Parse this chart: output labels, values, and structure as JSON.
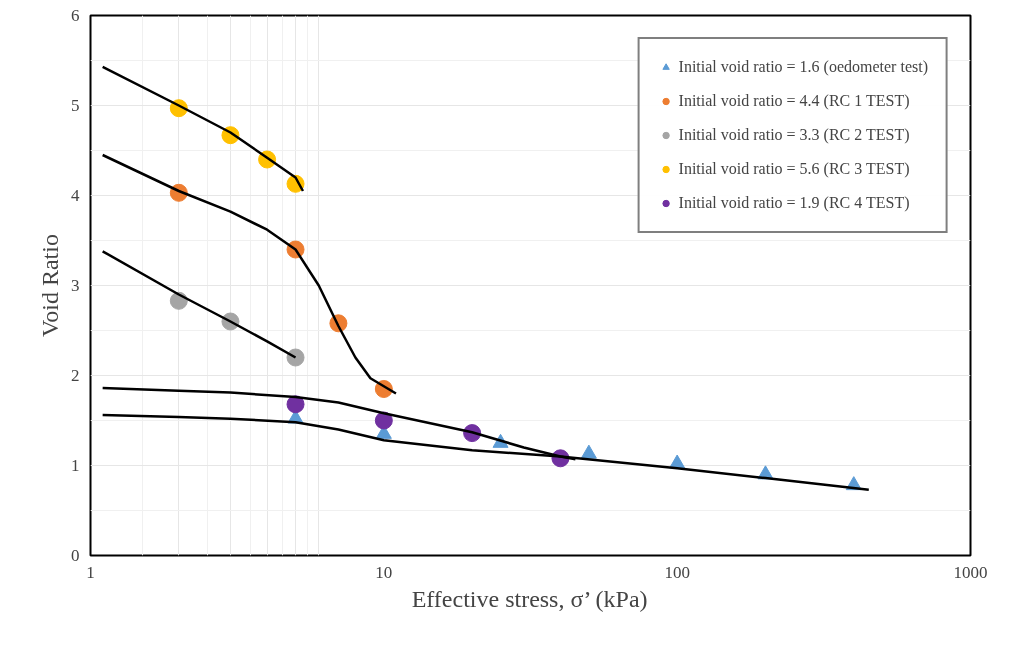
{
  "chart_data": {
    "type": "scatter",
    "xlabel": "Effective stress, σ’ (kPa)",
    "ylabel": "Void Ratio",
    "log": "x",
    "grid": true,
    "legend": "top right",
    "xlim": [
      1,
      1000
    ],
    "xticks": [
      1,
      10,
      100,
      1000
    ],
    "ylim": [
      0,
      6
    ],
    "yticks": [
      0,
      1,
      2,
      3,
      4,
      5,
      6
    ],
    "series": [
      {
        "name": "Initial void ratio = 1.6 (oedometer test)",
        "color": "#5b9bd5",
        "marker": "triangle",
        "x": [
          5,
          10,
          25,
          50,
          100,
          200,
          400
        ],
        "values": [
          1.52,
          1.35,
          1.25,
          1.13,
          1.02,
          0.9,
          0.78
        ]
      },
      {
        "name": "Initial void ratio = 4.4 (RC 1 TEST)",
        "color": "#ed7d31",
        "marker": "circle",
        "x": [
          2,
          5,
          7,
          10
        ],
        "values": [
          4.03,
          3.4,
          2.58,
          1.85
        ]
      },
      {
        "name": "Initial void ratio = 3.3 (RC 2 TEST)",
        "color": "#a5a5a5",
        "marker": "circle",
        "x": [
          2,
          3,
          5
        ],
        "values": [
          2.83,
          2.6,
          2.2
        ]
      },
      {
        "name": "Initial void ratio = 5.6 (RC 3 TEST)",
        "color": "#ffc000",
        "marker": "circle",
        "x": [
          2,
          3,
          4,
          5
        ],
        "values": [
          4.97,
          4.67,
          4.4,
          4.13
        ]
      },
      {
        "name": "Initial void ratio = 1.9 (RC 4 TEST)",
        "color": "#7030a0",
        "marker": "circle",
        "x": [
          5,
          10,
          20,
          40
        ],
        "values": [
          1.68,
          1.5,
          1.36,
          1.08
        ]
      },
      {
        "type": "line",
        "color": "#000000",
        "x": [
          1.1,
          2,
          3,
          4,
          5,
          5.3
        ],
        "values": [
          5.43,
          5.0,
          4.7,
          4.42,
          4.2,
          4.05
        ]
      },
      {
        "type": "line",
        "color": "#000000",
        "x": [
          1.1,
          2,
          3,
          4,
          5,
          6,
          7,
          8,
          9,
          11
        ],
        "values": [
          4.45,
          4.05,
          3.82,
          3.62,
          3.4,
          3.0,
          2.55,
          2.2,
          1.97,
          1.8
        ]
      },
      {
        "type": "line",
        "color": "#000000",
        "x": [
          1.1,
          2,
          3,
          4,
          5
        ],
        "values": [
          3.38,
          2.9,
          2.6,
          2.38,
          2.2
        ]
      },
      {
        "type": "line",
        "color": "#000000",
        "x": [
          1.1,
          2,
          3,
          5,
          7,
          10,
          20,
          30,
          40,
          45
        ],
        "values": [
          1.86,
          1.83,
          1.81,
          1.76,
          1.7,
          1.58,
          1.37,
          1.2,
          1.1,
          1.07
        ]
      },
      {
        "type": "line",
        "color": "#000000",
        "x": [
          1.1,
          2,
          3,
          5,
          7,
          10,
          20,
          40,
          100,
          200,
          450
        ],
        "values": [
          1.56,
          1.54,
          1.52,
          1.48,
          1.4,
          1.28,
          1.17,
          1.1,
          0.97,
          0.86,
          0.73
        ]
      }
    ]
  }
}
